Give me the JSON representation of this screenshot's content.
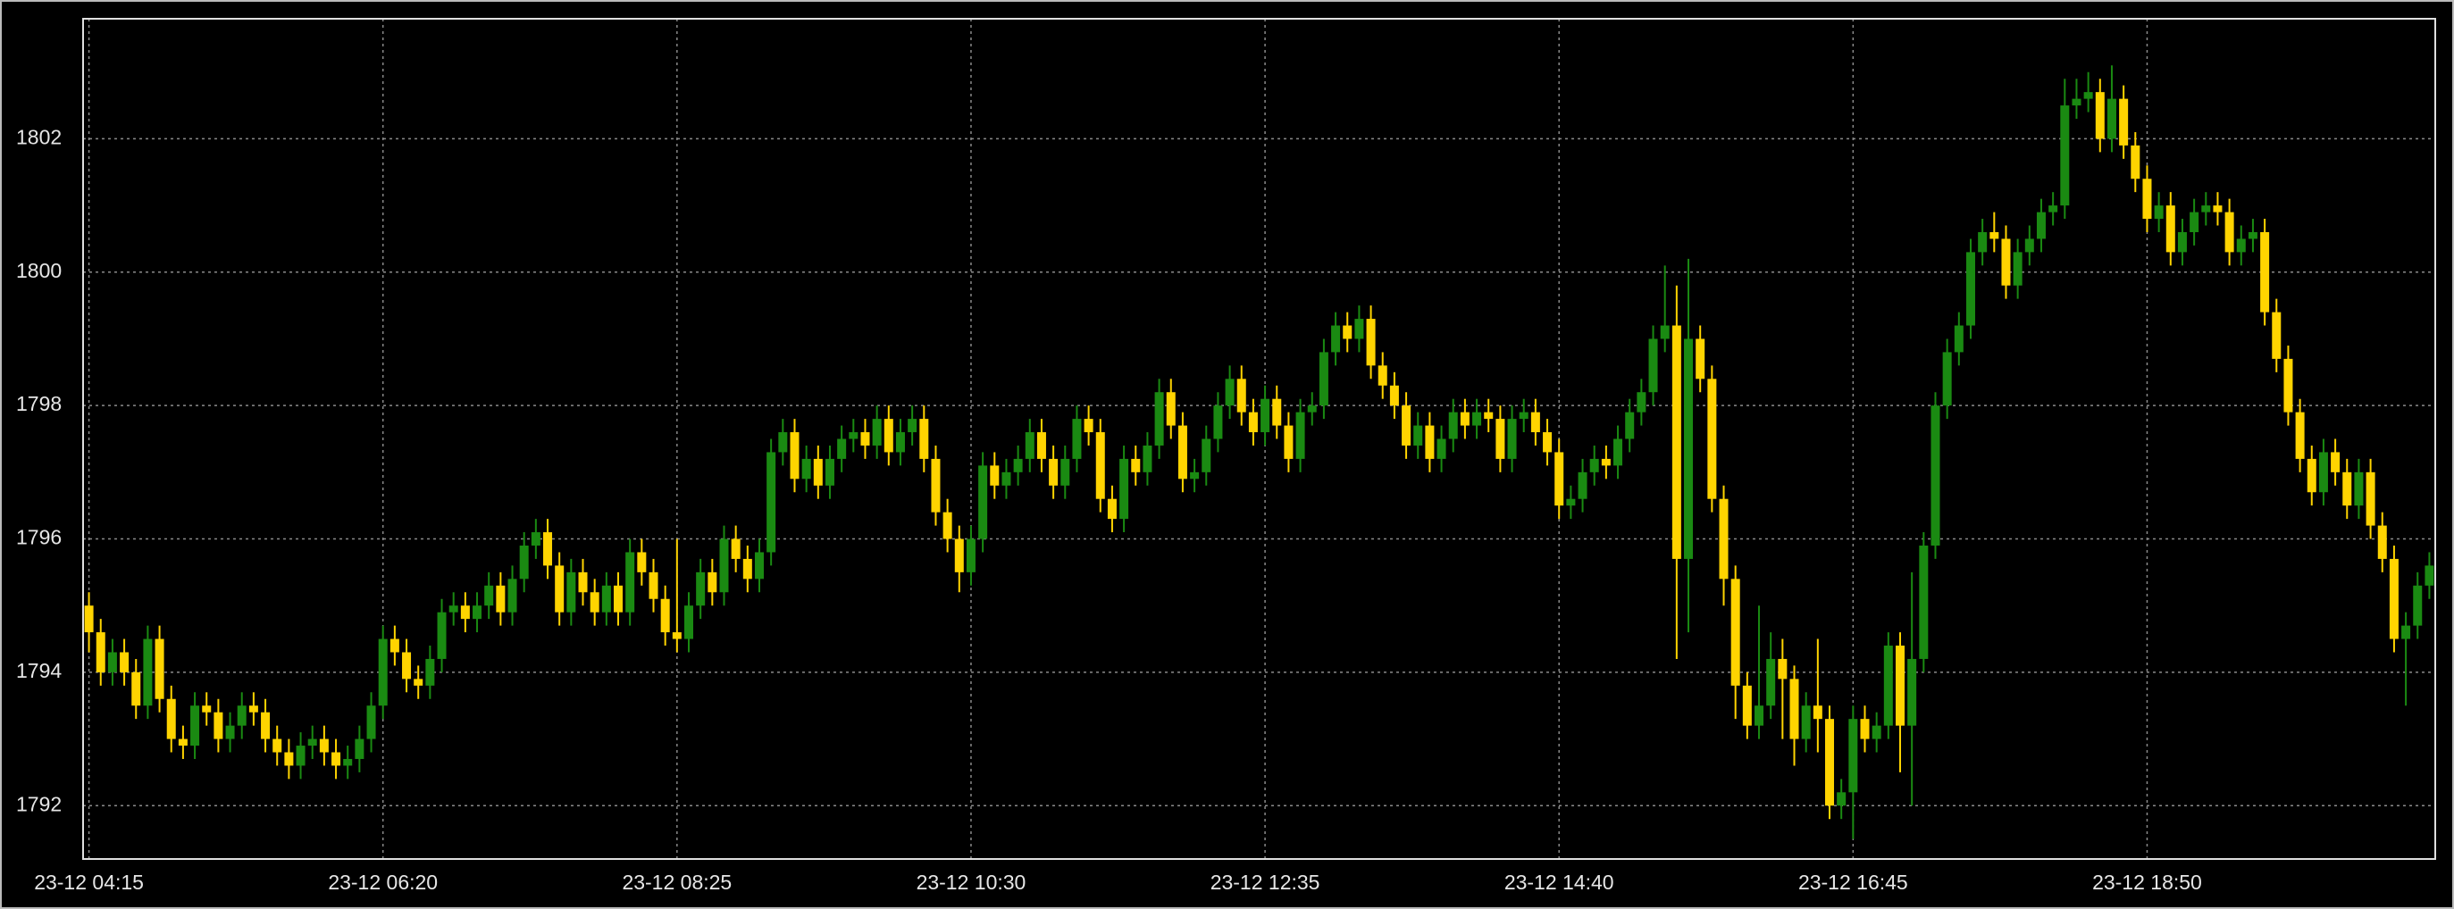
{
  "chart_data": {
    "type": "candlestick",
    "categories": [
      "23-12 04:15",
      null,
      null,
      null,
      null,
      null,
      null,
      null,
      null,
      null,
      null,
      null,
      null,
      null,
      null,
      null,
      null,
      null,
      null,
      null,
      null,
      null,
      null,
      null,
      null,
      "23-12 06:20",
      null,
      null,
      null,
      null,
      null,
      null,
      null,
      null,
      null,
      null,
      null,
      null,
      null,
      null,
      null,
      null,
      null,
      null,
      null,
      null,
      null,
      null,
      null,
      null,
      "23-12 08:25",
      null,
      null,
      null,
      null,
      null,
      null,
      null,
      null,
      null,
      null,
      null,
      null,
      null,
      null,
      null,
      null,
      null,
      null,
      null,
      null,
      null,
      null,
      null,
      null,
      "23-12 10:30",
      null,
      null,
      null,
      null,
      null,
      null,
      null,
      null,
      null,
      null,
      null,
      null,
      null,
      null,
      null,
      null,
      null,
      null,
      null,
      null,
      null,
      null,
      null,
      null,
      "23-12 12:35",
      null,
      null,
      null,
      null,
      null,
      null,
      null,
      null,
      null,
      null,
      null,
      null,
      null,
      null,
      null,
      null,
      null,
      null,
      null,
      null,
      null,
      null,
      null,
      null,
      "23-12 14:40",
      null,
      null,
      null,
      null,
      null,
      null,
      null,
      null,
      null,
      null,
      null,
      null,
      null,
      null,
      null,
      null,
      null,
      null,
      null,
      null,
      null,
      null,
      null,
      null,
      "23-12 16:45",
      null,
      null,
      null,
      null,
      null,
      null,
      null,
      null,
      null,
      null,
      null,
      null,
      null,
      null,
      null,
      null,
      null,
      null,
      null,
      null,
      null,
      null,
      null,
      null,
      "23-12 18:50",
      null,
      null,
      null,
      null,
      null,
      null,
      null,
      null,
      null,
      null,
      null,
      null,
      null,
      null,
      null,
      null,
      null,
      null,
      null,
      null,
      null,
      null,
      null,
      null
    ],
    "open": [
      1795.0,
      1794.6,
      1794.0,
      1794.3,
      1794.0,
      1793.5,
      1794.5,
      1793.6,
      1793.0,
      1792.9,
      1793.5,
      1793.4,
      1793.0,
      1793.2,
      1793.5,
      1793.4,
      1793.0,
      1792.8,
      1792.6,
      1792.9,
      1793.0,
      1792.8,
      1792.6,
      1792.7,
      1793.0,
      1793.5,
      1794.5,
      1794.3,
      1793.9,
      1793.8,
      1794.2,
      1794.9,
      1795.0,
      1794.8,
      1795.0,
      1795.3,
      1794.9,
      1795.4,
      1795.9,
      1796.1,
      1795.6,
      1794.9,
      1795.5,
      1795.2,
      1794.9,
      1795.3,
      1794.9,
      1795.8,
      1795.5,
      1795.1,
      1794.6,
      1794.5,
      1795.0,
      1795.5,
      1795.2,
      1796.0,
      1795.7,
      1795.4,
      1795.8,
      1797.3,
      1797.6,
      1796.9,
      1797.2,
      1796.8,
      1797.2,
      1797.5,
      1797.6,
      1797.4,
      1797.8,
      1797.3,
      1797.6,
      1797.8,
      1797.2,
      1796.4,
      1796.0,
      1795.5,
      1796.0,
      1797.1,
      1796.8,
      1797.0,
      1797.2,
      1797.6,
      1797.2,
      1796.8,
      1797.2,
      1797.8,
      1797.6,
      1796.6,
      1796.3,
      1797.2,
      1797.0,
      1797.4,
      1798.2,
      1797.7,
      1796.9,
      1797.0,
      1797.5,
      1798.0,
      1798.4,
      1797.9,
      1797.6,
      1798.1,
      1797.7,
      1797.2,
      1797.9,
      1798.0,
      1798.8,
      1799.2,
      1799.0,
      1799.3,
      1798.6,
      1798.3,
      1798.0,
      1797.4,
      1797.7,
      1797.2,
      1797.5,
      1797.9,
      1797.7,
      1797.9,
      1797.8,
      1797.2,
      1797.8,
      1797.9,
      1797.6,
      1797.3,
      1796.5,
      1796.6,
      1797.0,
      1797.2,
      1797.1,
      1797.5,
      1797.9,
      1798.2,
      1799.0,
      1799.2,
      1795.7,
      1799.0,
      1798.4,
      1796.6,
      1795.4,
      1793.8,
      1793.2,
      1793.5,
      1794.2,
      1793.9,
      1793.0,
      1793.5,
      1793.3,
      1792.0,
      1792.2,
      1793.3,
      1793.0,
      1793.2,
      1794.4,
      1793.2,
      1794.2,
      1795.9,
      1798.0,
      1798.8,
      1799.2,
      1800.3,
      1800.6,
      1800.5,
      1799.8,
      1800.3,
      1800.5,
      1800.9,
      1801.0,
      1802.5,
      1802.6,
      1802.7,
      1802.0,
      1802.6,
      1801.9,
      1801.4,
      1800.8,
      1801.0,
      1800.3,
      1800.6,
      1800.9,
      1801.0,
      1800.9,
      1800.3,
      1800.5,
      1800.6,
      1799.4,
      1798.7,
      1797.9,
      1797.2,
      1796.7,
      1797.3,
      1797.0,
      1796.5,
      1797.0,
      1796.2,
      1795.7,
      1794.5,
      1794.7,
      1795.3
    ],
    "high": [
      1795.2,
      1794.8,
      1794.5,
      1794.5,
      1794.2,
      1794.7,
      1794.7,
      1793.8,
      1793.2,
      1793.7,
      1793.7,
      1793.6,
      1793.4,
      1793.7,
      1793.7,
      1793.6,
      1793.2,
      1793.0,
      1793.1,
      1793.2,
      1793.2,
      1793.0,
      1792.9,
      1793.2,
      1793.7,
      1794.7,
      1794.7,
      1794.5,
      1794.1,
      1794.4,
      1795.1,
      1795.2,
      1795.2,
      1795.2,
      1795.5,
      1795.5,
      1795.6,
      1796.1,
      1796.3,
      1796.3,
      1795.8,
      1795.7,
      1795.7,
      1795.4,
      1795.5,
      1795.5,
      1796.0,
      1796.0,
      1795.7,
      1795.3,
      1796.0,
      1795.2,
      1795.7,
      1795.7,
      1796.2,
      1796.2,
      1795.9,
      1796.0,
      1797.5,
      1797.8,
      1797.8,
      1797.4,
      1797.4,
      1797.4,
      1797.7,
      1797.8,
      1797.8,
      1798.0,
      1798.0,
      1797.8,
      1798.0,
      1798.0,
      1797.4,
      1796.6,
      1796.2,
      1796.2,
      1797.3,
      1797.3,
      1797.2,
      1797.4,
      1797.8,
      1797.8,
      1797.4,
      1797.4,
      1798.0,
      1798.0,
      1797.8,
      1796.8,
      1797.4,
      1797.4,
      1797.6,
      1798.4,
      1798.4,
      1797.9,
      1797.2,
      1797.7,
      1798.2,
      1798.6,
      1798.6,
      1798.1,
      1798.3,
      1798.3,
      1797.9,
      1798.1,
      1798.2,
      1799.0,
      1799.4,
      1799.4,
      1799.5,
      1799.5,
      1798.8,
      1798.5,
      1798.2,
      1797.9,
      1797.9,
      1797.7,
      1798.1,
      1798.1,
      1798.1,
      1798.1,
      1798.0,
      1798.0,
      1798.1,
      1798.1,
      1797.8,
      1797.5,
      1796.8,
      1797.2,
      1797.4,
      1797.4,
      1797.7,
      1798.1,
      1798.4,
      1799.2,
      1800.1,
      1799.8,
      1800.2,
      1799.2,
      1798.6,
      1796.8,
      1795.6,
      1794.0,
      1795.0,
      1794.6,
      1794.5,
      1794.1,
      1793.7,
      1794.5,
      1793.5,
      1792.4,
      1793.5,
      1793.5,
      1793.4,
      1794.6,
      1794.6,
      1795.5,
      1796.1,
      1798.2,
      1799.0,
      1799.4,
      1800.5,
      1800.8,
      1800.9,
      1800.7,
      1800.5,
      1800.7,
      1801.1,
      1801.2,
      1802.9,
      1802.9,
      1803.0,
      1802.9,
      1803.1,
      1802.8,
      1802.1,
      1801.6,
      1801.2,
      1801.2,
      1800.8,
      1801.1,
      1801.2,
      1801.2,
      1801.1,
      1800.7,
      1800.8,
      1800.8,
      1799.6,
      1798.9,
      1798.1,
      1797.4,
      1797.5,
      1797.5,
      1797.2,
      1797.2,
      1797.2,
      1796.4,
      1795.9,
      1794.9,
      1795.5,
      1795.8
    ],
    "low": [
      1794.3,
      1793.8,
      1793.8,
      1793.8,
      1793.3,
      1793.3,
      1793.4,
      1792.8,
      1792.7,
      1792.7,
      1793.2,
      1792.8,
      1792.8,
      1793.0,
      1793.2,
      1792.8,
      1792.6,
      1792.4,
      1792.4,
      1792.7,
      1792.6,
      1792.4,
      1792.4,
      1792.5,
      1792.8,
      1793.3,
      1794.1,
      1793.7,
      1793.6,
      1793.6,
      1794.0,
      1794.7,
      1794.6,
      1794.6,
      1794.8,
      1794.7,
      1794.7,
      1795.2,
      1795.7,
      1795.4,
      1794.7,
      1794.7,
      1795.0,
      1794.7,
      1794.7,
      1794.7,
      1794.7,
      1795.3,
      1794.9,
      1794.4,
      1794.3,
      1794.3,
      1794.8,
      1795.0,
      1795.0,
      1795.5,
      1795.2,
      1795.2,
      1795.6,
      1797.1,
      1796.7,
      1796.7,
      1796.6,
      1796.6,
      1797.0,
      1797.3,
      1797.2,
      1797.2,
      1797.1,
      1797.1,
      1797.4,
      1797.0,
      1796.2,
      1795.8,
      1795.2,
      1795.3,
      1795.8,
      1796.6,
      1796.6,
      1796.8,
      1797.0,
      1797.0,
      1796.6,
      1796.6,
      1797.0,
      1797.4,
      1796.4,
      1796.1,
      1796.1,
      1796.8,
      1796.8,
      1797.2,
      1797.5,
      1796.7,
      1796.7,
      1796.8,
      1797.3,
      1797.8,
      1797.7,
      1797.4,
      1797.4,
      1797.5,
      1797.0,
      1797.0,
      1797.7,
      1797.8,
      1798.6,
      1798.8,
      1798.8,
      1798.4,
      1798.1,
      1797.8,
      1797.2,
      1797.2,
      1797.0,
      1797.0,
      1797.3,
      1797.5,
      1797.5,
      1797.6,
      1797.0,
      1797.0,
      1797.6,
      1797.4,
      1797.1,
      1796.3,
      1796.3,
      1796.4,
      1796.8,
      1796.9,
      1796.9,
      1797.3,
      1797.7,
      1798.0,
      1798.8,
      1794.2,
      1794.6,
      1798.2,
      1796.4,
      1795.0,
      1793.3,
      1793.0,
      1793.0,
      1793.3,
      1793.0,
      1792.6,
      1792.8,
      1792.8,
      1791.8,
      1791.8,
      1791.5,
      1792.8,
      1792.8,
      1793.0,
      1792.5,
      1792.0,
      1794.0,
      1795.7,
      1797.8,
      1798.6,
      1799.0,
      1800.1,
      1800.3,
      1799.6,
      1799.6,
      1800.1,
      1800.3,
      1800.7,
      1800.8,
      1802.3,
      1802.4,
      1801.8,
      1801.8,
      1801.7,
      1801.2,
      1800.6,
      1800.6,
      1800.1,
      1800.1,
      1800.4,
      1800.7,
      1800.7,
      1800.1,
      1800.1,
      1800.3,
      1799.2,
      1798.5,
      1797.7,
      1797.0,
      1796.5,
      1796.5,
      1796.8,
      1796.3,
      1796.3,
      1796.0,
      1795.5,
      1794.3,
      1793.5,
      1794.5,
      1795.1
    ],
    "close": [
      1794.6,
      1794.0,
      1794.3,
      1794.0,
      1793.5,
      1794.5,
      1793.6,
      1793.0,
      1792.9,
      1793.5,
      1793.4,
      1793.0,
      1793.2,
      1793.5,
      1793.4,
      1793.0,
      1792.8,
      1792.6,
      1792.9,
      1793.0,
      1792.8,
      1792.6,
      1792.7,
      1793.0,
      1793.5,
      1794.5,
      1794.3,
      1793.9,
      1793.8,
      1794.2,
      1794.9,
      1795.0,
      1794.8,
      1795.0,
      1795.3,
      1794.9,
      1795.4,
      1795.9,
      1796.1,
      1795.6,
      1794.9,
      1795.5,
      1795.2,
      1794.9,
      1795.3,
      1794.9,
      1795.8,
      1795.5,
      1795.1,
      1794.6,
      1794.5,
      1795.0,
      1795.5,
      1795.2,
      1796.0,
      1795.7,
      1795.4,
      1795.8,
      1797.3,
      1797.6,
      1796.9,
      1797.2,
      1796.8,
      1797.2,
      1797.5,
      1797.6,
      1797.4,
      1797.8,
      1797.3,
      1797.6,
      1797.8,
      1797.2,
      1796.4,
      1796.0,
      1795.5,
      1796.0,
      1797.1,
      1796.8,
      1797.0,
      1797.2,
      1797.6,
      1797.2,
      1796.8,
      1797.2,
      1797.8,
      1797.6,
      1796.6,
      1796.3,
      1797.2,
      1797.0,
      1797.4,
      1798.2,
      1797.7,
      1796.9,
      1797.0,
      1797.5,
      1798.0,
      1798.4,
      1797.9,
      1797.6,
      1798.1,
      1797.7,
      1797.2,
      1797.9,
      1798.0,
      1798.8,
      1799.2,
      1799.0,
      1799.3,
      1798.6,
      1798.3,
      1798.0,
      1797.4,
      1797.7,
      1797.2,
      1797.5,
      1797.9,
      1797.7,
      1797.9,
      1797.8,
      1797.2,
      1797.8,
      1797.9,
      1797.6,
      1797.3,
      1796.5,
      1796.6,
      1797.0,
      1797.2,
      1797.1,
      1797.5,
      1797.9,
      1798.2,
      1799.0,
      1799.2,
      1795.7,
      1799.0,
      1798.4,
      1796.6,
      1795.4,
      1793.8,
      1793.2,
      1793.5,
      1794.2,
      1793.9,
      1793.0,
      1793.5,
      1793.3,
      1792.0,
      1792.2,
      1793.3,
      1793.0,
      1793.2,
      1794.4,
      1793.2,
      1794.2,
      1795.9,
      1798.0,
      1798.8,
      1799.2,
      1800.3,
      1800.6,
      1800.5,
      1799.8,
      1800.3,
      1800.5,
      1800.9,
      1801.0,
      1802.5,
      1802.6,
      1802.7,
      1802.0,
      1802.6,
      1801.9,
      1801.4,
      1800.8,
      1801.0,
      1800.3,
      1800.6,
      1800.9,
      1801.0,
      1800.9,
      1800.3,
      1800.5,
      1800.6,
      1799.4,
      1798.7,
      1797.9,
      1797.2,
      1796.7,
      1797.3,
      1797.0,
      1796.5,
      1797.0,
      1796.2,
      1795.7,
      1794.5,
      1794.7,
      1795.3,
      1795.6
    ],
    "up_color": "#1a8a12",
    "down_color": "#ffd400",
    "ylim": [
      1791.2,
      1803.8
    ],
    "yticks": [
      1792,
      1794,
      1796,
      1798,
      1800,
      1802
    ],
    "grid": true
  }
}
